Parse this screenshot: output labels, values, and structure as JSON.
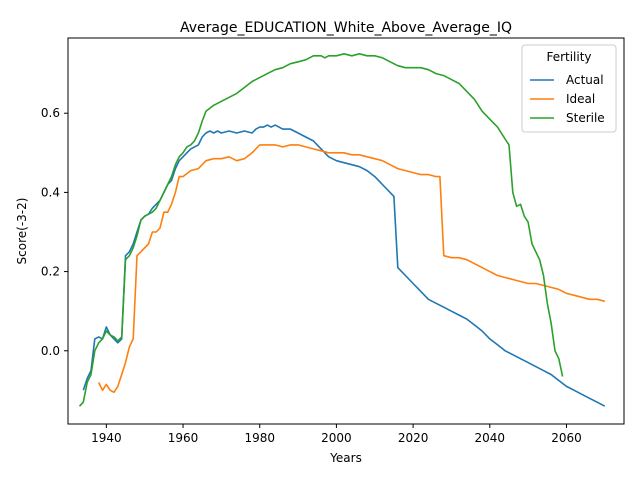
{
  "chart_data": {
    "type": "line",
    "title": "Average_EDUCATION_White_Above_Average_IQ",
    "xlabel": "Years",
    "ylabel": "Score(-3-2)",
    "xlim": [
      1930,
      2075
    ],
    "ylim": [
      -0.185,
      0.79
    ],
    "x_ticks": [
      1940,
      1960,
      1980,
      2000,
      2020,
      2040,
      2060
    ],
    "y_ticks": [
      0.0,
      0.2,
      0.4,
      0.6
    ],
    "y_tick_labels": [
      "0.0",
      "0.2",
      "0.4",
      "0.6"
    ],
    "grid": false,
    "legend": {
      "title": "Fertility",
      "position": "top-right"
    },
    "series": [
      {
        "name": "Actual",
        "color": "#1f77b4",
        "x": [
          1934,
          1935,
          1936,
          1937,
          1938,
          1939,
          1940,
          1941,
          1942,
          1943,
          1944,
          1945,
          1946,
          1947,
          1948,
          1949,
          1950,
          1951,
          1952,
          1953,
          1954,
          1955,
          1956,
          1957,
          1958,
          1959,
          1960,
          1961,
          1962,
          1963,
          1964,
          1965,
          1966,
          1967,
          1968,
          1969,
          1970,
          1972,
          1974,
          1976,
          1978,
          1979,
          1980,
          1981,
          1982,
          1983,
          1984,
          1985,
          1986,
          1988,
          1990,
          1992,
          1994,
          1996,
          1998,
          2000,
          2002,
          2004,
          2006,
          2008,
          2010,
          2012,
          2014,
          2015,
          2016,
          2017,
          2018,
          2020,
          2022,
          2024,
          2026,
          2028,
          2030,
          2032,
          2034,
          2036,
          2038,
          2040,
          2042,
          2044,
          2046,
          2048,
          2050,
          2052,
          2054,
          2056,
          2058,
          2060,
          2062,
          2064,
          2066,
          2068,
          2070
        ],
        "values": [
          -0.1,
          -0.07,
          -0.05,
          0.03,
          0.035,
          0.03,
          0.06,
          0.04,
          0.03,
          0.02,
          0.03,
          0.24,
          0.25,
          0.27,
          0.3,
          0.33,
          0.34,
          0.345,
          0.36,
          0.37,
          0.38,
          0.4,
          0.42,
          0.43,
          0.46,
          0.48,
          0.49,
          0.5,
          0.51,
          0.515,
          0.52,
          0.54,
          0.55,
          0.555,
          0.55,
          0.555,
          0.55,
          0.555,
          0.55,
          0.555,
          0.55,
          0.56,
          0.565,
          0.565,
          0.57,
          0.565,
          0.57,
          0.565,
          0.56,
          0.56,
          0.55,
          0.54,
          0.53,
          0.51,
          0.49,
          0.48,
          0.475,
          0.47,
          0.465,
          0.455,
          0.44,
          0.42,
          0.4,
          0.39,
          0.21,
          0.2,
          0.19,
          0.17,
          0.15,
          0.13,
          0.12,
          0.11,
          0.1,
          0.09,
          0.08,
          0.065,
          0.05,
          0.03,
          0.015,
          0.0,
          -0.01,
          -0.02,
          -0.03,
          -0.04,
          -0.05,
          -0.06,
          -0.075,
          -0.09,
          -0.1,
          -0.11,
          -0.12,
          -0.13,
          -0.14
        ]
      },
      {
        "name": "Ideal",
        "color": "#ff7f0e",
        "x": [
          1938,
          1939,
          1940,
          1941,
          1942,
          1943,
          1944,
          1945,
          1946,
          1947,
          1948,
          1949,
          1950,
          1951,
          1952,
          1953,
          1954,
          1955,
          1956,
          1957,
          1958,
          1959,
          1960,
          1962,
          1964,
          1966,
          1968,
          1970,
          1972,
          1974,
          1976,
          1978,
          1980,
          1982,
          1984,
          1986,
          1988,
          1990,
          1992,
          1994,
          1996,
          1998,
          2000,
          2002,
          2004,
          2006,
          2008,
          2010,
          2012,
          2014,
          2016,
          2018,
          2020,
          2022,
          2024,
          2026,
          2027,
          2028,
          2030,
          2032,
          2034,
          2036,
          2038,
          2040,
          2042,
          2044,
          2046,
          2048,
          2050,
          2052,
          2054,
          2056,
          2058,
          2060,
          2062,
          2064,
          2066,
          2068,
          2070
        ],
        "values": [
          -0.08,
          -0.1,
          -0.085,
          -0.1,
          -0.105,
          -0.09,
          -0.06,
          -0.03,
          0.01,
          0.03,
          0.24,
          0.25,
          0.26,
          0.27,
          0.3,
          0.3,
          0.31,
          0.35,
          0.35,
          0.37,
          0.4,
          0.44,
          0.44,
          0.455,
          0.46,
          0.48,
          0.485,
          0.485,
          0.49,
          0.48,
          0.485,
          0.5,
          0.52,
          0.52,
          0.52,
          0.515,
          0.52,
          0.52,
          0.515,
          0.51,
          0.505,
          0.5,
          0.5,
          0.5,
          0.495,
          0.495,
          0.49,
          0.485,
          0.48,
          0.47,
          0.46,
          0.455,
          0.45,
          0.445,
          0.445,
          0.44,
          0.44,
          0.24,
          0.235,
          0.235,
          0.23,
          0.22,
          0.21,
          0.2,
          0.19,
          0.185,
          0.18,
          0.175,
          0.17,
          0.17,
          0.165,
          0.16,
          0.155,
          0.145,
          0.14,
          0.135,
          0.13,
          0.13,
          0.125
        ]
      },
      {
        "name": "Sterile",
        "color": "#2ca02c",
        "x": [
          1933,
          1934,
          1935,
          1936,
          1937,
          1938,
          1939,
          1940,
          1941,
          1942,
          1943,
          1944,
          1945,
          1946,
          1947,
          1948,
          1949,
          1950,
          1951,
          1952,
          1953,
          1954,
          1955,
          1956,
          1957,
          1958,
          1959,
          1960,
          1961,
          1962,
          1963,
          1964,
          1965,
          1966,
          1968,
          1970,
          1972,
          1974,
          1976,
          1978,
          1980,
          1982,
          1984,
          1986,
          1988,
          1990,
          1992,
          1994,
          1996,
          1997,
          1998,
          2000,
          2002,
          2004,
          2006,
          2008,
          2010,
          2012,
          2014,
          2016,
          2018,
          2020,
          2022,
          2024,
          2026,
          2028,
          2030,
          2032,
          2034,
          2036,
          2038,
          2040,
          2042,
          2044,
          2045,
          2046,
          2047,
          2048,
          2049,
          2050,
          2051,
          2053,
          2054,
          2055,
          2056,
          2057,
          2058,
          2059
        ],
        "values": [
          -0.14,
          -0.13,
          -0.08,
          -0.06,
          0.0,
          0.02,
          0.03,
          0.05,
          0.04,
          0.035,
          0.025,
          0.035,
          0.23,
          0.24,
          0.26,
          0.29,
          0.33,
          0.34,
          0.345,
          0.35,
          0.36,
          0.38,
          0.4,
          0.42,
          0.44,
          0.47,
          0.49,
          0.5,
          0.515,
          0.52,
          0.53,
          0.55,
          0.58,
          0.605,
          0.62,
          0.63,
          0.64,
          0.65,
          0.665,
          0.68,
          0.69,
          0.7,
          0.71,
          0.715,
          0.725,
          0.73,
          0.735,
          0.745,
          0.745,
          0.74,
          0.745,
          0.745,
          0.75,
          0.745,
          0.75,
          0.745,
          0.745,
          0.74,
          0.73,
          0.72,
          0.715,
          0.715,
          0.715,
          0.71,
          0.7,
          0.695,
          0.685,
          0.675,
          0.655,
          0.635,
          0.605,
          0.585,
          0.565,
          0.535,
          0.52,
          0.4,
          0.365,
          0.37,
          0.34,
          0.325,
          0.27,
          0.23,
          0.19,
          0.12,
          0.07,
          0.0,
          -0.02,
          -0.065
        ]
      }
    ]
  }
}
